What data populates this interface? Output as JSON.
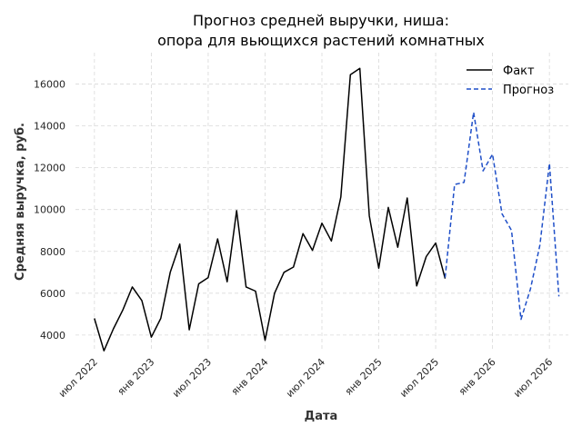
{
  "chart_data": {
    "type": "line",
    "title_lines": [
      "Прогноз средней выручки, ниша:",
      "опора для вьющихся растений комнатных"
    ],
    "xlabel": "Дата",
    "ylabel": "Средняя выручка, руб.",
    "ylim": [
      3300,
      17500
    ],
    "yticks": [
      4000,
      6000,
      8000,
      10000,
      12000,
      14000,
      16000
    ],
    "xlim": [
      "2022-05",
      "2026-09"
    ],
    "xticks": [
      {
        "date": "2022-07",
        "label": "июл 2022"
      },
      {
        "date": "2023-01",
        "label": "янв 2023"
      },
      {
        "date": "2023-07",
        "label": "июл 2023"
      },
      {
        "date": "2024-01",
        "label": "янв 2024"
      },
      {
        "date": "2024-07",
        "label": "июл 2024"
      },
      {
        "date": "2025-01",
        "label": "янв 2025"
      },
      {
        "date": "2025-07",
        "label": "июл 2025"
      },
      {
        "date": "2026-01",
        "label": "янв 2026"
      },
      {
        "date": "2026-07",
        "label": "июл 2026"
      }
    ],
    "grid": true,
    "legend_position": "top-right",
    "series": [
      {
        "name": "Факт",
        "style": "solid",
        "color": "#000000",
        "x": [
          "2022-07",
          "2022-08",
          "2022-09",
          "2022-10",
          "2022-11",
          "2022-12",
          "2023-01",
          "2023-02",
          "2023-03",
          "2023-04",
          "2023-05",
          "2023-06",
          "2023-07",
          "2023-08",
          "2023-09",
          "2023-10",
          "2023-11",
          "2023-12",
          "2024-01",
          "2024-02",
          "2024-03",
          "2024-04",
          "2024-05",
          "2024-06",
          "2024-07",
          "2024-08",
          "2024-09",
          "2024-10",
          "2024-11",
          "2024-12",
          "2025-01",
          "2025-02",
          "2025-03",
          "2025-04",
          "2025-05",
          "2025-06",
          "2025-07",
          "2025-08"
        ],
        "y": [
          4800,
          3250,
          4300,
          5200,
          6300,
          5650,
          3900,
          4800,
          7000,
          8350,
          4250,
          6450,
          6750,
          8600,
          6550,
          9950,
          6300,
          6100,
          3750,
          6000,
          7000,
          7250,
          8850,
          8050,
          9350,
          8500,
          10600,
          16450,
          16750,
          9700,
          7200,
          10100,
          8200,
          10550,
          6350,
          7750,
          8400,
          6700
        ]
      },
      {
        "name": "Прогноз",
        "style": "dashed",
        "color": "#1f4fc8",
        "x": [
          "2025-08",
          "2025-09",
          "2025-10",
          "2025-11",
          "2025-12",
          "2026-01",
          "2026-02",
          "2026-03",
          "2026-04",
          "2026-05",
          "2026-06",
          "2026-07",
          "2026-08"
        ],
        "y": [
          6750,
          11200,
          11300,
          14650,
          11850,
          12650,
          9800,
          9000,
          4750,
          6200,
          8300,
          12200,
          5850
        ]
      }
    ]
  }
}
